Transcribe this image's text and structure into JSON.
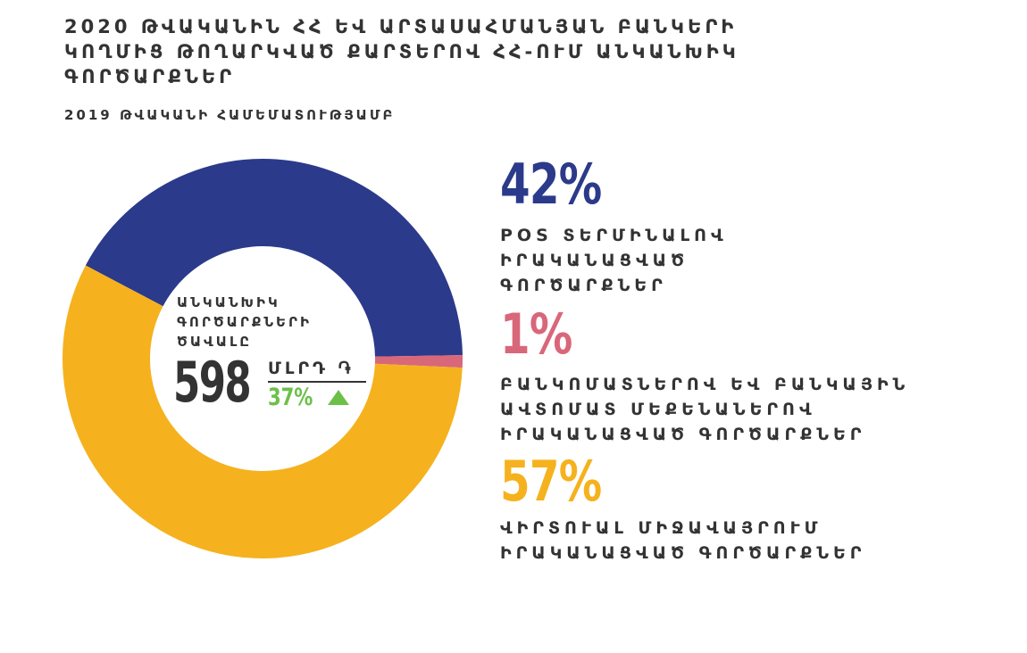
{
  "title": "2020 ԹՎԱԿԱՆԻՆ ՀՀ ԵՎ ԱՐՏԱՍԱՀՄԱՆՅԱՆ ԲԱՆԿԵՐԻ ԿՈՂՄԻՑ ԹՈՂԱՐԿՎԱԾ ՔԱՐՏԵՐՈՎ ՀՀ-ՈՒՄ ԱՆԿԱՆԽԻԿ ԳՈՐԾԱՐՔՆԵՐ",
  "subtitle": "2019 ԹՎԱԿԱՆԻ ՀԱՄԵՄԱՏՈՒԹՅԱՄԲ",
  "center": {
    "label": "ԱՆԿԱՆԽԻԿ ԳՈՐԾԱՐՔՆԵՐԻ ԾԱՎԱԼԸ",
    "value": "598",
    "unit": "ՄԼՐԴ ֏",
    "growth": "37%",
    "growth_direction": "up",
    "growth_color": "#6cc04a"
  },
  "chart_data": {
    "type": "pie",
    "title": "2020 ԹՎԱԿԱՆԻՆ ՀՀ ԵՎ ԱՐՏԱՍԱՀՄԱՆՅԱՆ ԲԱՆԿԵՐԻ ԿՈՂՄԻՑ ԹՈՂԱՐԿՎԱԾ ՔԱՐՏԵՐՈՎ ՀՀ-ՈՒՄ ԱՆԿԱՆԽԻԿ ԳՈՐԾԱՐՔՆԵՐ",
    "subtitle": "2019 ԹՎԱԿԱՆԻ ՀԱՄԵՄԱՏՈՒԹՅԱՄԲ",
    "donut": true,
    "slices": [
      {
        "label": "POS ՏԵՐՄԻՆԱԼՈՎ ԻՐԱԿԱՆԱՑՎԱԾ ԳՈՐԾԱՐՔՆԵՐ",
        "pct_label": "42%",
        "value": 42,
        "color": "#2b3a8a"
      },
      {
        "label": "ԲԱՆԿՈՄԱՏՆԵՐՈՎ ԵՎ ԲԱՆԿԱՅԻՆ ԱՎՏՈՄԱՏ ՄԵՔԵՆԱՆԵՐՈՎ ԻՐԱԿԱՆԱՑՎԱԾ ԳՈՐԾԱՐՔՆԵՐ",
        "pct_label": "1%",
        "value": 1,
        "color": "#d9677a"
      },
      {
        "label": "ՎԻՐՏՈՒԱԼ ՄԻՋԱՎԱՅՐՈՒՄ ԻՐԱԿԱՆԱՑՎԱԾ ԳՈՐԾԱՐՔՆԵՐ",
        "pct_label": "57%",
        "value": 57,
        "color": "#f5b21e"
      }
    ]
  },
  "legend": [
    {
      "pct": "42%",
      "text": "POS ՏԵՐՄԻՆԱԼՈՎ\nԻՐԱԿԱՆԱՑՎԱԾ\nԳՈՐԾԱՐՔՆԵՐ",
      "color": "#2b3a8a"
    },
    {
      "pct": "1%",
      "text": "ԲԱՆԿՈՄԱՏՆԵՐՈՎ ԵՎ ԲԱՆԿԱՅԻՆ\nԱՎՏՈՄԱՏ ՄԵՔԵՆԱՆԵՐՈՎ\nԻՐԱԿԱՆԱՑՎԱԾ ԳՈՐԾԱՐՔՆԵՐ",
      "color": "#d9677a"
    },
    {
      "pct": "57%",
      "text": "ՎԻՐՏՈՒԱԼ ՄԻՋԱՎԱՅՐՈՒՄ\nԻՐԱԿԱՆԱՑՎԱԾ ԳՈՐԾԱՐՔՆԵՐ",
      "color": "#f5b21e"
    }
  ]
}
